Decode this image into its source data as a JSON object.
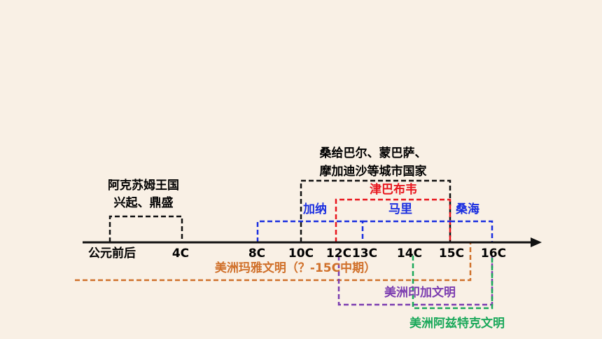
{
  "axis": {
    "ticks": [
      "公元前后",
      "4C",
      "8C",
      "10C",
      "12C",
      "13C",
      "14C",
      "15C",
      "16C"
    ]
  },
  "periods": [
    {
      "lines": [
        "阿克苏姆王国",
        "兴起、鼎盛"
      ]
    },
    {
      "lines": [
        "桑给巴尔、蒙巴萨、",
        "摩加迪沙等城市国家"
      ]
    },
    {
      "lines": [
        "津巴布韦"
      ]
    },
    {
      "lines": [
        "加纳"
      ]
    },
    {
      "lines": [
        "马里"
      ]
    },
    {
      "lines": [
        "桑海"
      ]
    },
    {
      "lines": [
        "美洲玛雅文明（？-15C中期）"
      ]
    },
    {
      "lines": [
        "美洲印加文明"
      ]
    },
    {
      "lines": [
        "美洲阿兹特克文明"
      ]
    }
  ]
}
